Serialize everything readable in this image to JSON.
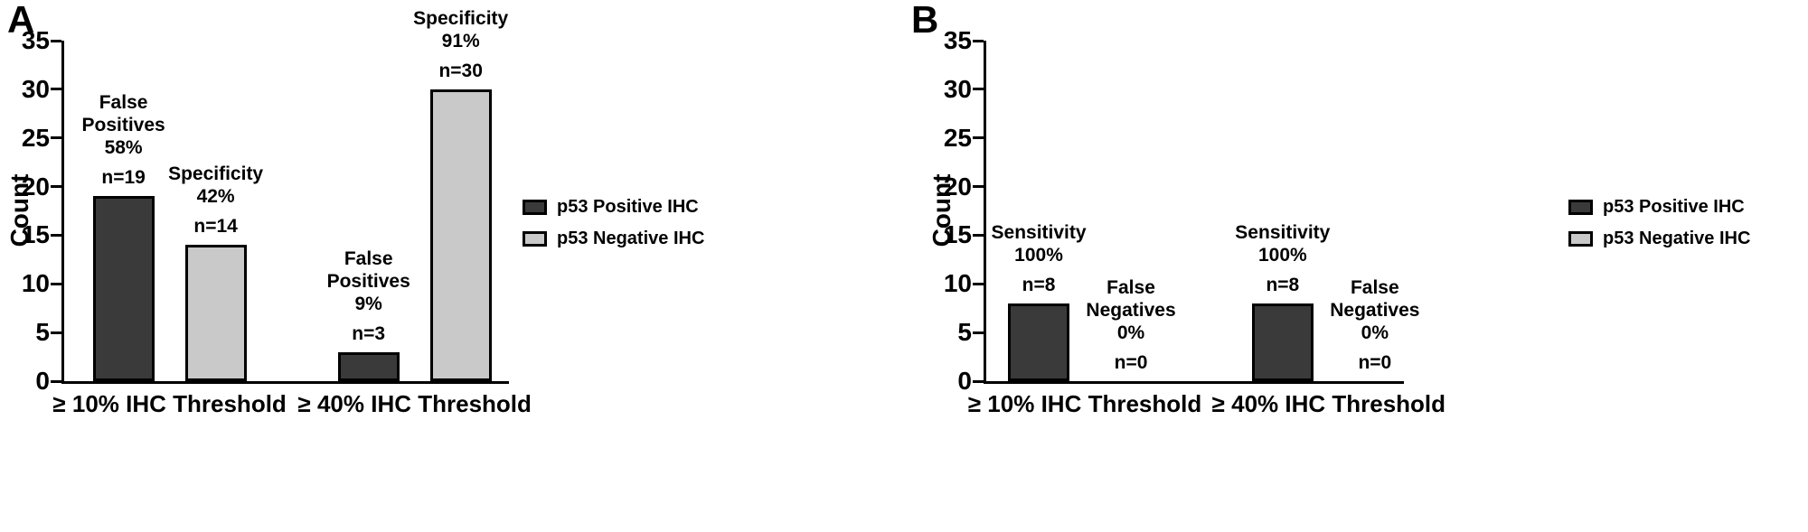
{
  "figure": {
    "panels": [
      {
        "letter": "A"
      },
      {
        "letter": "B"
      }
    ]
  },
  "colors": {
    "positive_fill": "#3a3a3a",
    "negative_fill": "#c9c9c9",
    "axis": "#000000",
    "background": "#ffffff"
  },
  "legend": {
    "items": [
      {
        "label": "p53 Positive IHC",
        "series": "positive"
      },
      {
        "label": "p53 Negative IHC",
        "series": "negative"
      }
    ]
  },
  "chart_data": [
    {
      "type": "bar",
      "panel": "A",
      "title": "",
      "xlabel": "",
      "ylabel": "Count",
      "ylim": [
        0,
        35
      ],
      "yticks": [
        0,
        5,
        10,
        15,
        20,
        25,
        30,
        35
      ],
      "grid": false,
      "legend_position": "right",
      "categories": [
        "≥ 10% IHC Threshold",
        "≥ 40% IHC Threshold"
      ],
      "series": [
        {
          "name": "p53 Positive IHC",
          "values": [
            19,
            3
          ]
        },
        {
          "name": "p53 Negative IHC",
          "values": [
            14,
            30
          ]
        }
      ],
      "annotations": [
        {
          "group": 0,
          "series": 0,
          "stat": "False\nPositives\n58%",
          "n": "n=19"
        },
        {
          "group": 0,
          "series": 1,
          "stat": "Specificity\n42%",
          "n": "n=14"
        },
        {
          "group": 1,
          "series": 0,
          "stat": "False\nPositives\n9%",
          "n": "n=3"
        },
        {
          "group": 1,
          "series": 1,
          "stat": "Specificity\n91%",
          "n": "n=30"
        }
      ]
    },
    {
      "type": "bar",
      "panel": "B",
      "title": "",
      "xlabel": "",
      "ylabel": "Count",
      "ylim": [
        0,
        35
      ],
      "yticks": [
        0,
        5,
        10,
        15,
        20,
        25,
        30,
        35
      ],
      "grid": false,
      "legend_position": "right",
      "categories": [
        "≥ 10% IHC Threshold",
        "≥ 40% IHC Threshold"
      ],
      "series": [
        {
          "name": "p53 Positive IHC",
          "values": [
            8,
            8
          ]
        },
        {
          "name": "p53 Negative IHC",
          "values": [
            0,
            0
          ]
        }
      ],
      "annotations": [
        {
          "group": 0,
          "series": 0,
          "stat": "Sensitivity\n100%",
          "n": "n=8"
        },
        {
          "group": 0,
          "series": 1,
          "stat": "False\nNegatives\n0%",
          "n": "n=0"
        },
        {
          "group": 1,
          "series": 0,
          "stat": "Sensitivity\n100%",
          "n": "n=8"
        },
        {
          "group": 1,
          "series": 1,
          "stat": "False\nNegatives\n0%",
          "n": "n=0"
        }
      ]
    }
  ]
}
